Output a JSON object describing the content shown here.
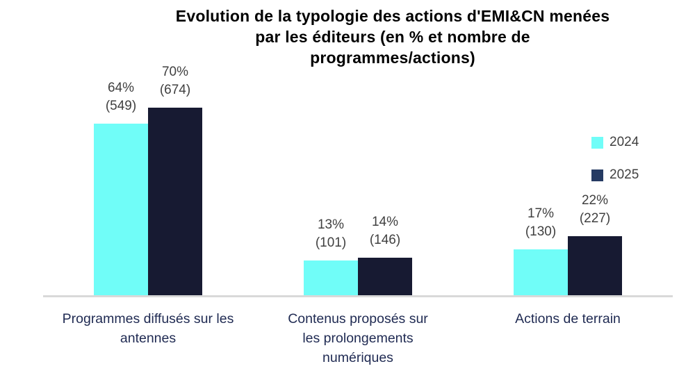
{
  "title": {
    "lines": [
      "Evolution de la typologie des actions d'EMI&CN menées",
      "par les éditeurs (en % et nombre de",
      "programmes/actions)"
    ]
  },
  "legend": {
    "items": [
      {
        "label": "2024",
        "color": "#70fdf8"
      },
      {
        "label": "2025",
        "color": "#263b63"
      }
    ]
  },
  "colors": {
    "bar_2024": "#70fdf8",
    "bar_2025": "#171a32",
    "axis_line": "#d9d9d9",
    "value_label": "#404040",
    "category_label": "#1f2a52"
  },
  "chart_data": {
    "type": "bar",
    "title": "Evolution de la typologie des actions d'EMI&CN menées par les éditeurs (en % et nombre de programmes/actions)",
    "categories": [
      "Programmes diffusés sur les antennes",
      "Contenus proposés sur les prolongements numériques",
      "Actions de terrain"
    ],
    "categories_display": [
      [
        "Programmes diffusés sur les",
        "antennes"
      ],
      [
        "Contenus proposés sur",
        "les prolongements",
        "numériques"
      ],
      [
        "Actions de terrain"
      ]
    ],
    "series": [
      {
        "name": "2024",
        "color": "#70fdf8",
        "values_pct": [
          64,
          13,
          17
        ],
        "counts": [
          549,
          101,
          130
        ]
      },
      {
        "name": "2025",
        "color": "#171a32",
        "values_pct": [
          70,
          14,
          22
        ],
        "counts": [
          674,
          146,
          227
        ]
      }
    ],
    "value_label_format": "{pct}% ({count})",
    "ylim": [
      0,
      70
    ],
    "grid": false,
    "legend_position": "right",
    "xlabel": "",
    "ylabel": ""
  }
}
